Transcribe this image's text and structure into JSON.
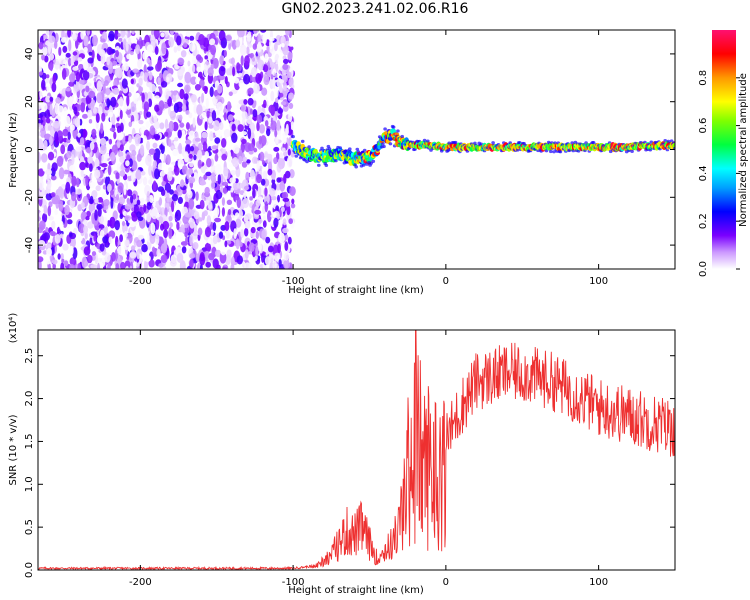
{
  "title": "GN02.2023.241.02.06.R16",
  "chart_data": [
    {
      "type": "heatmap",
      "xlabel": "Height of straight line (km)",
      "ylabel": "Frequency (Hz)",
      "xlim": [
        -267,
        150
      ],
      "ylim": [
        -50,
        50
      ],
      "x_ticks": [
        -200,
        -100,
        0,
        100
      ],
      "y_ticks": [
        -40,
        -20,
        0,
        20,
        40
      ],
      "colorbar": {
        "label": "Normalized spectral amplitude",
        "range": [
          0,
          1
        ],
        "ticks": [
          0.0,
          0.2,
          0.4,
          0.6,
          0.8
        ]
      },
      "regions": [
        {
          "x": [
            -267,
            -100
          ],
          "pattern": "broadband noise, amplitude 0.0-0.2"
        },
        {
          "x": [
            -100,
            -60
          ],
          "frequency_hz": [
            -8,
            2
          ],
          "amplitude": [
            0.2,
            0.9
          ]
        },
        {
          "x": [
            -60,
            -25
          ],
          "frequency_hz": [
            -12,
            12
          ],
          "amplitude": [
            0.2,
            1.0
          ]
        },
        {
          "x": [
            -25,
            150
          ],
          "frequency_hz": [
            0,
            3
          ],
          "amplitude": [
            0.4,
            1.0
          ]
        }
      ],
      "ridge": {
        "x": [
          -100,
          -90,
          -80,
          -70,
          -60,
          -50,
          -45,
          -40,
          -35,
          -30,
          -25,
          -15,
          0,
          20,
          50,
          80,
          100,
          120,
          150
        ],
        "frequency": [
          2,
          -2,
          -3,
          -2,
          -4,
          -3,
          0,
          5,
          6,
          3,
          2,
          2,
          1,
          1,
          1,
          1,
          1,
          1,
          2
        ]
      }
    },
    {
      "type": "line",
      "xlabel": "Height of straight line (km)",
      "ylabel": "SNR (10 * v/v)",
      "y_multiplier": "(x10⁴)",
      "xlim": [
        -267,
        150
      ],
      "ylim": [
        0,
        2.8
      ],
      "x_ticks": [
        -200,
        -100,
        0,
        100
      ],
      "y_ticks": [
        0.0,
        0.5,
        1.0,
        1.5,
        2.0,
        2.5
      ],
      "color": "#ee3030",
      "series": [
        {
          "x": [
            -267,
            -240,
            -200,
            -150,
            -100,
            -85,
            -75,
            -70,
            -65,
            -60,
            -55,
            -50,
            -45,
            -40,
            -35,
            -30,
            -25,
            -20,
            -15,
            -10,
            -5,
            0,
            10,
            20,
            30,
            40,
            50,
            60,
            70,
            80,
            90,
            100,
            110,
            120,
            130,
            140,
            150
          ],
          "values": [
            0.02,
            0.02,
            0.02,
            0.02,
            0.02,
            0.05,
            0.2,
            0.35,
            0.5,
            0.45,
            0.55,
            0.35,
            0.15,
            0.25,
            0.35,
            0.6,
            1.3,
            2.0,
            1.4,
            1.5,
            1.3,
            1.5,
            1.9,
            2.2,
            2.25,
            2.3,
            2.3,
            2.25,
            2.2,
            2.1,
            2.0,
            1.9,
            1.85,
            1.8,
            1.75,
            1.7,
            1.65
          ]
        }
      ]
    }
  ]
}
